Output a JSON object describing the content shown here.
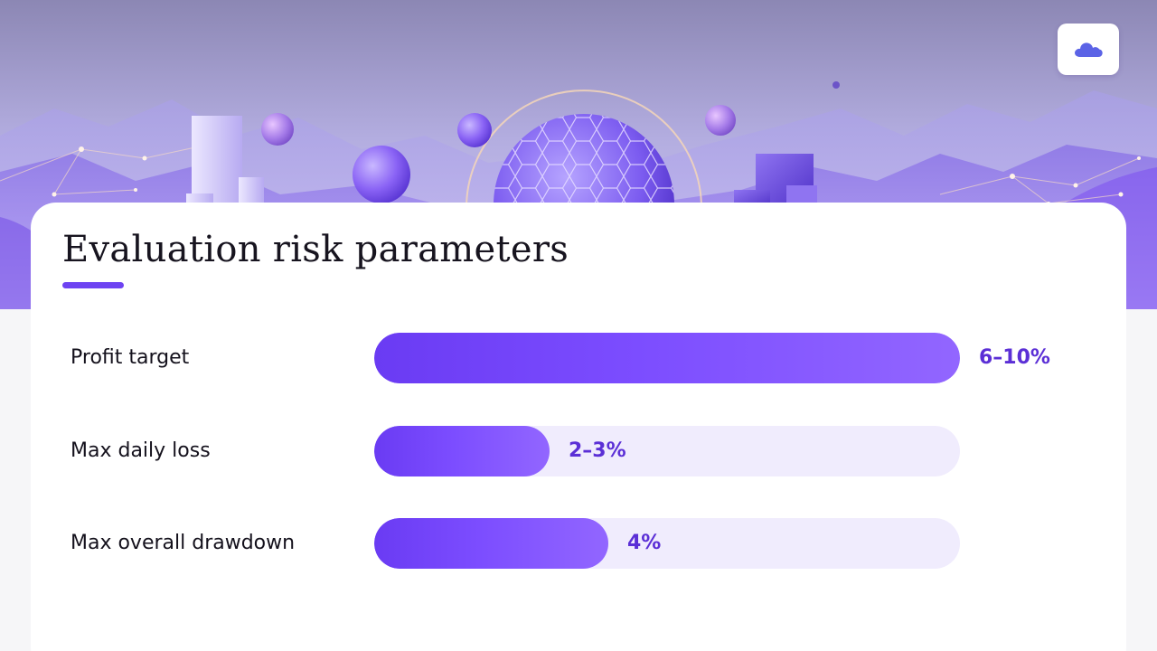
{
  "header": {
    "title": "Evaluation risk parameters",
    "logo_icon": "cloud-icon"
  },
  "colors": {
    "accent": "#6e43f2",
    "bar_track": "#f0ecfd",
    "bar_start": "#6a3bf3",
    "bar_end": "#9266ff",
    "value_text": "#5b2fd6"
  },
  "chart_data": {
    "type": "bar",
    "orientation": "horizontal",
    "title": "Evaluation risk parameters",
    "categories": [
      "Profit target",
      "Max daily loss",
      "Max overall drawdown"
    ],
    "values": [
      10,
      3,
      4
    ],
    "value_labels": [
      "6–10%",
      "2–3%",
      "4%"
    ],
    "xlim": [
      0,
      10
    ],
    "grid": false
  }
}
